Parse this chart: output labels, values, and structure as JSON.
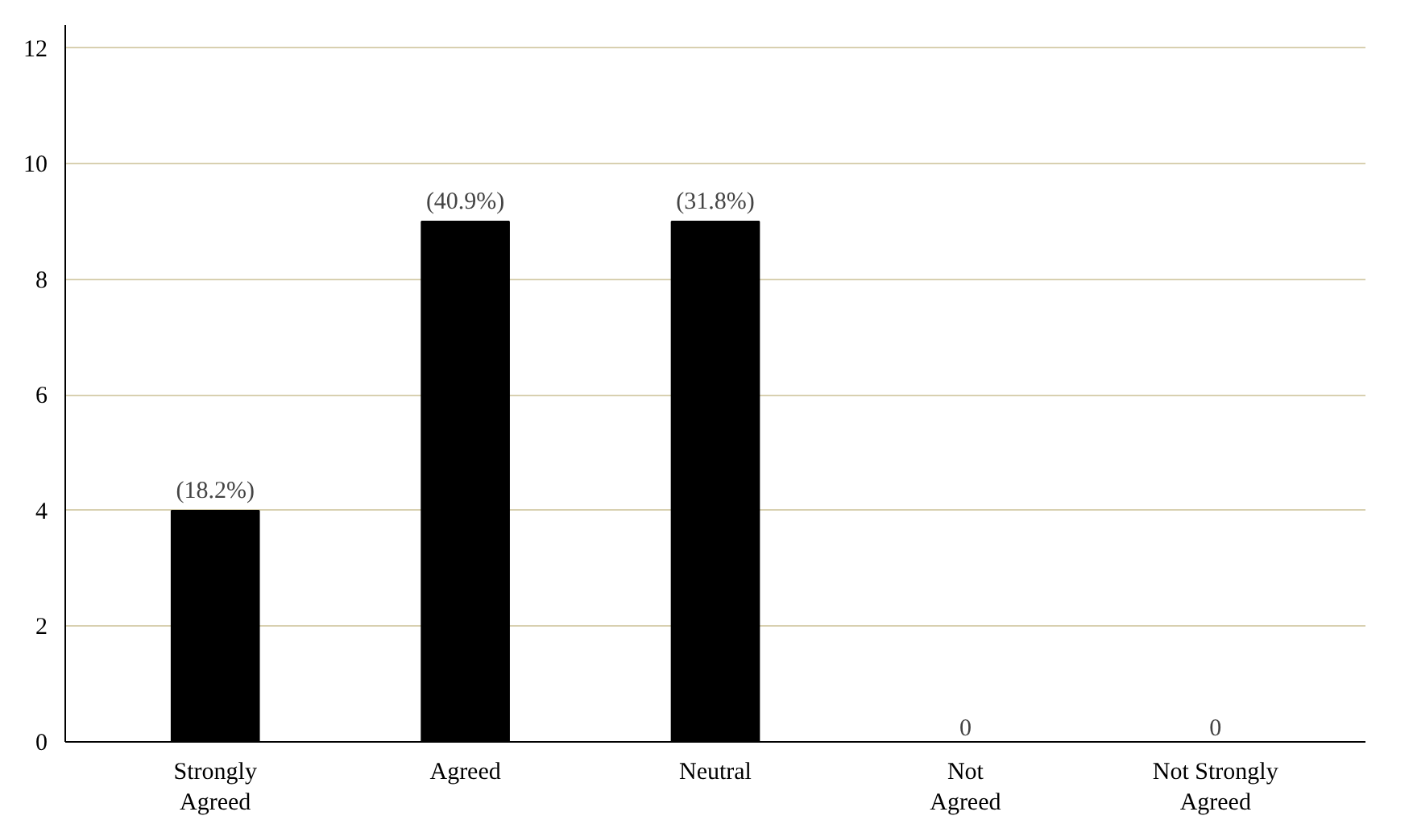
{
  "chart_data": {
    "type": "bar",
    "categories": [
      "Strongly Agreed",
      "Agreed",
      "Neutral",
      "Not Agreed",
      "Not Strongly Agreed"
    ],
    "values": [
      4,
      9,
      9,
      0,
      0
    ],
    "annotations": [
      {
        "text": "(18.2%)",
        "x": "Strongly Agreed",
        "y": 4
      },
      {
        "text": "(40.9%)",
        "x": "Agreed",
        "y": 9
      },
      {
        "text": "(31.8%)",
        "x": "Neutral",
        "y": 9
      },
      {
        "text": "0",
        "x": "Not Agreed",
        "y": 0
      },
      {
        "text": "0",
        "x": "Not Strongly Agreed",
        "y": 0
      }
    ],
    "color": "#000000",
    "ylim": [
      0,
      12.4
    ],
    "yticks": [
      0,
      2,
      4,
      6,
      8,
      10,
      12
    ],
    "grid": "y"
  }
}
